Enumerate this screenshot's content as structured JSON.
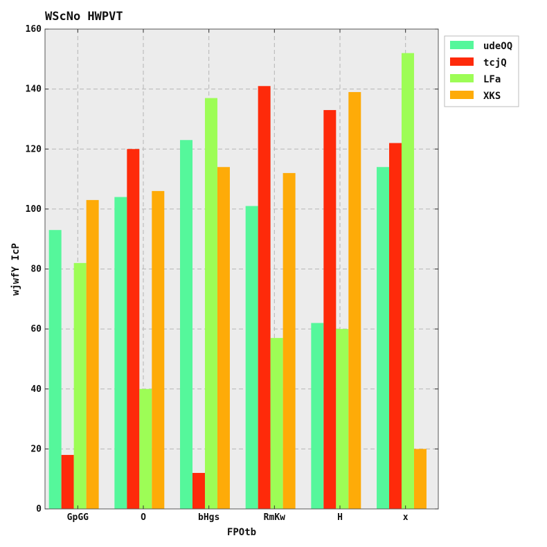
{
  "chart_data": {
    "type": "bar",
    "title": "WScNo HWPVT",
    "xlabel": "FPOtb",
    "ylabel": "wjwfY IcP",
    "categories": [
      "GpGG",
      "O",
      "bHgs",
      "RmKw",
      "H",
      "x"
    ],
    "series": [
      {
        "name": "udeOQ",
        "color": "#55f79b",
        "values": [
          93,
          104,
          123,
          101,
          62,
          114
        ]
      },
      {
        "name": "tcjQ",
        "color": "#fe2a0a",
        "values": [
          18,
          120,
          12,
          141,
          133,
          122
        ]
      },
      {
        "name": "LFa",
        "color": "#9dfd56",
        "values": [
          82,
          40,
          137,
          57,
          60,
          152
        ]
      },
      {
        "name": "XKS",
        "color": "#feab08",
        "values": [
          103,
          106,
          114,
          112,
          139,
          20
        ]
      }
    ],
    "ylim": [
      0,
      160
    ],
    "yticks": [
      0,
      20,
      40,
      60,
      80,
      100,
      120,
      140,
      160
    ],
    "grid": true,
    "legend_position": "top-right (outside plot)",
    "plot_background": "#ececec"
  }
}
